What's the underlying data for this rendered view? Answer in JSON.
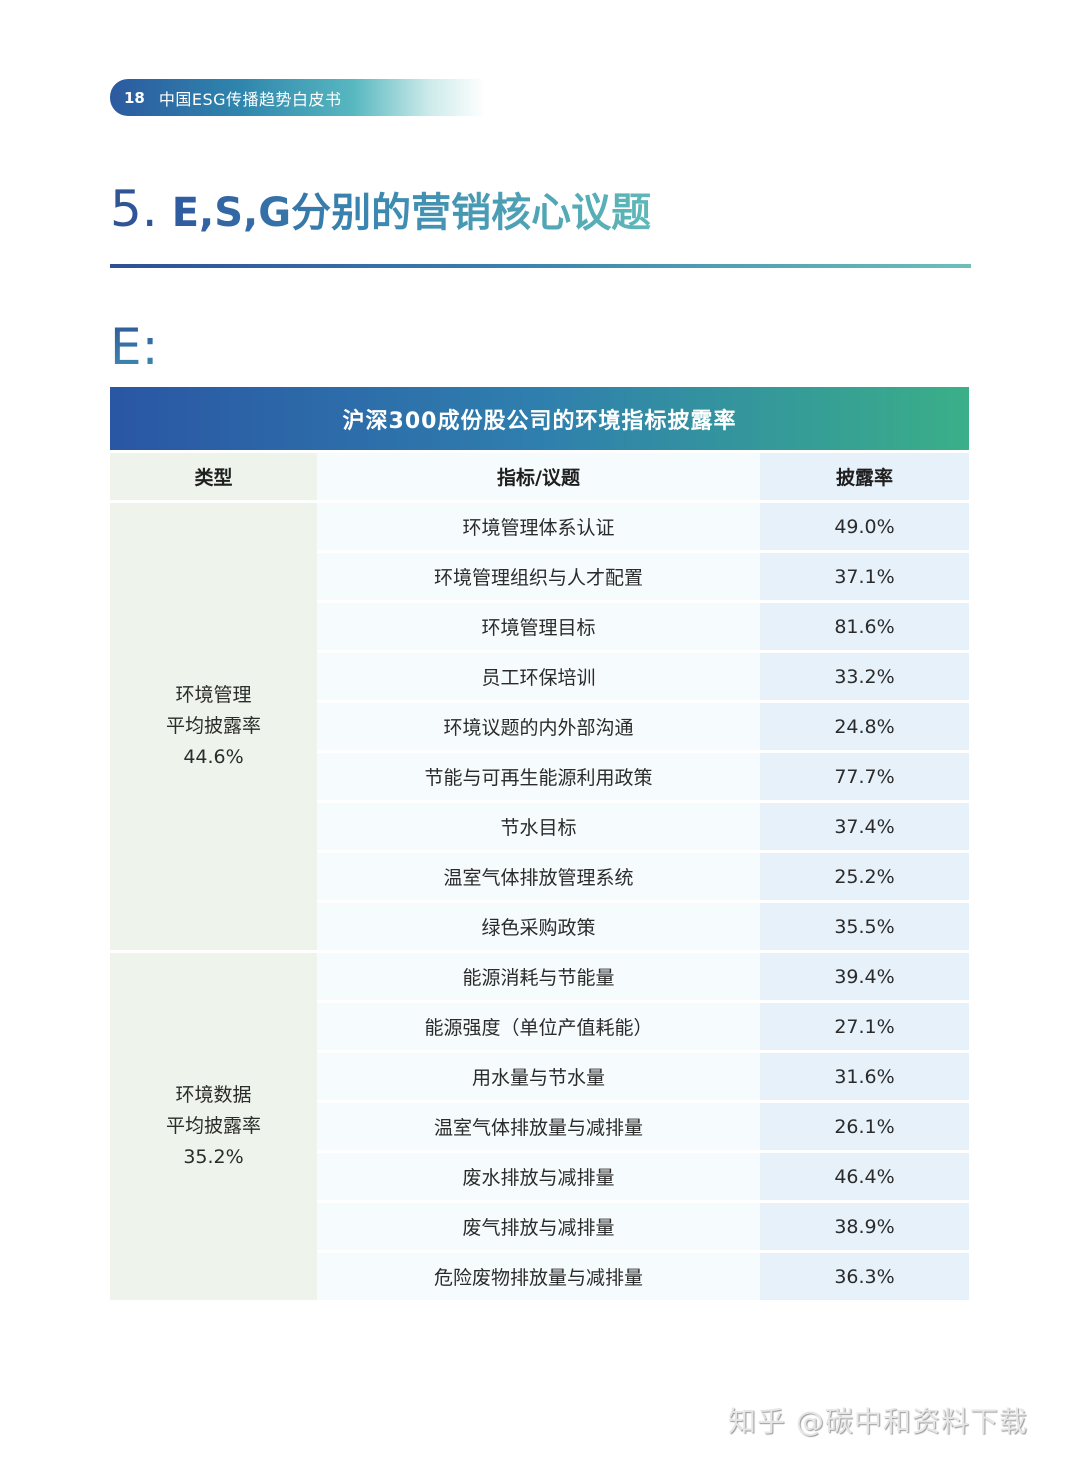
{
  "header": {
    "page_number": "18",
    "document_title": "中国ESG传播趋势白皮书"
  },
  "section": {
    "number": "5.",
    "title": "E,S,G分别的营销核心议题",
    "subsection_label": "E:"
  },
  "table": {
    "title": "沪深300成份股公司的环境指标披露率",
    "columns": [
      "类型",
      "指标/议题",
      "披露率"
    ],
    "groups": [
      {
        "type_line1": "环境管理",
        "type_line2": "平均披露率",
        "type_line3": "44.6%",
        "rows": [
          {
            "indicator": "环境管理体系认证",
            "rate": "49.0%"
          },
          {
            "indicator": "环境管理组织与人才配置",
            "rate": "37.1%"
          },
          {
            "indicator": "环境管理目标",
            "rate": "81.6%"
          },
          {
            "indicator": "员工环保培训",
            "rate": "33.2%"
          },
          {
            "indicator": "环境议题的内外部沟通",
            "rate": "24.8%"
          },
          {
            "indicator": "节能与可再生能源利用政策",
            "rate": "77.7%"
          },
          {
            "indicator": "节水目标",
            "rate": "37.4%"
          },
          {
            "indicator": "温室气体排放管理系统",
            "rate": "25.2%"
          },
          {
            "indicator": "绿色采购政策",
            "rate": "35.5%"
          }
        ]
      },
      {
        "type_line1": "环境数据",
        "type_line2": "平均披露率",
        "type_line3": "35.2%",
        "rows": [
          {
            "indicator": "能源消耗与节能量",
            "rate": "39.4%"
          },
          {
            "indicator": "能源强度（单位产值耗能）",
            "rate": "27.1%"
          },
          {
            "indicator": "用水量与节水量",
            "rate": "31.6%"
          },
          {
            "indicator": "温室气体排放量与减排量",
            "rate": "26.1%"
          },
          {
            "indicator": "废水排放与减排量",
            "rate": "46.4%"
          },
          {
            "indicator": "废气排放与减排量",
            "rate": "38.9%"
          },
          {
            "indicator": "危险废物排放量与减排量",
            "rate": "36.3%"
          }
        ]
      }
    ]
  },
  "watermark": "知乎 @碳中和资料下载",
  "colors": {
    "brand_blue": "#2f5597",
    "brand_teal": "#5fb8b8",
    "table_header_start": "#2a56a4",
    "table_header_end": "#3aaf88",
    "type_column_bg": "#eef4ec",
    "indicator_column_bg": "#f6fbfd",
    "rate_column_bg": "#e7f1fa"
  }
}
